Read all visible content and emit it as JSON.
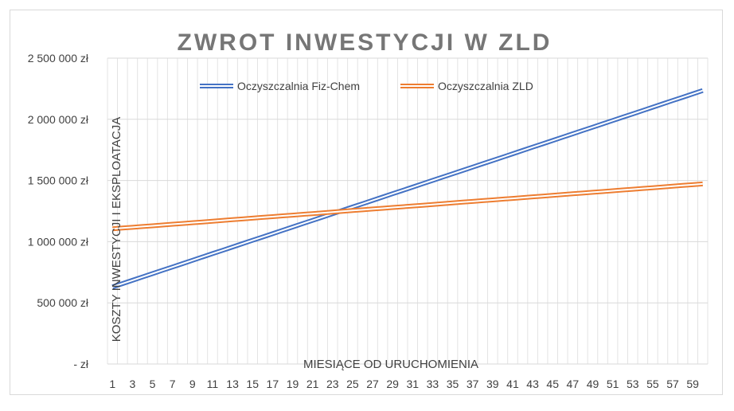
{
  "chart_data": {
    "type": "line",
    "title": "ZWROT INWESTYCJI W ZLD",
    "xlabel": "MIESIĄCE OD URUCHOMIENIA",
    "ylabel": "KOSZTY INWESTYCJI I EKSPLOATACJA",
    "ylim": [
      0,
      2500000
    ],
    "yticks": [
      {
        "value": 0,
        "label": "-   zł"
      },
      {
        "value": 500000,
        "label": "500 000 zł"
      },
      {
        "value": 1000000,
        "label": "1 000 000 zł"
      },
      {
        "value": 1500000,
        "label": "1 500 000 zł"
      },
      {
        "value": 2000000,
        "label": "2 000 000 zł"
      },
      {
        "value": 2500000,
        "label": "2 500 000 zł"
      }
    ],
    "x": [
      1,
      2,
      3,
      4,
      5,
      6,
      7,
      8,
      9,
      10,
      11,
      12,
      13,
      14,
      15,
      16,
      17,
      18,
      19,
      20,
      21,
      22,
      23,
      24,
      25,
      26,
      27,
      28,
      29,
      30,
      31,
      32,
      33,
      34,
      35,
      36,
      37,
      38,
      39,
      40,
      41,
      42,
      43,
      44,
      45,
      46,
      47,
      48,
      49,
      50,
      51,
      52,
      53,
      54,
      55,
      56,
      57,
      58,
      59,
      60
    ],
    "xtick_labels": [
      "1",
      "3",
      "5",
      "7",
      "9",
      "11",
      "13",
      "15",
      "17",
      "19",
      "21",
      "23",
      "25",
      "27",
      "29",
      "31",
      "33",
      "35",
      "37",
      "39",
      "41",
      "43",
      "45",
      "47",
      "49",
      "51",
      "53",
      "55",
      "57",
      "59"
    ],
    "grid": true,
    "legend_position": "top",
    "series": [
      {
        "name": "Oczyszczalnia Fiz-Chem",
        "color": "#4472c4",
        "start": 630000,
        "end": 2235000
      },
      {
        "name": "Oczyszczalnia ZLD",
        "color": "#ed7d31",
        "start": 1105000,
        "end": 1472000
      }
    ]
  }
}
